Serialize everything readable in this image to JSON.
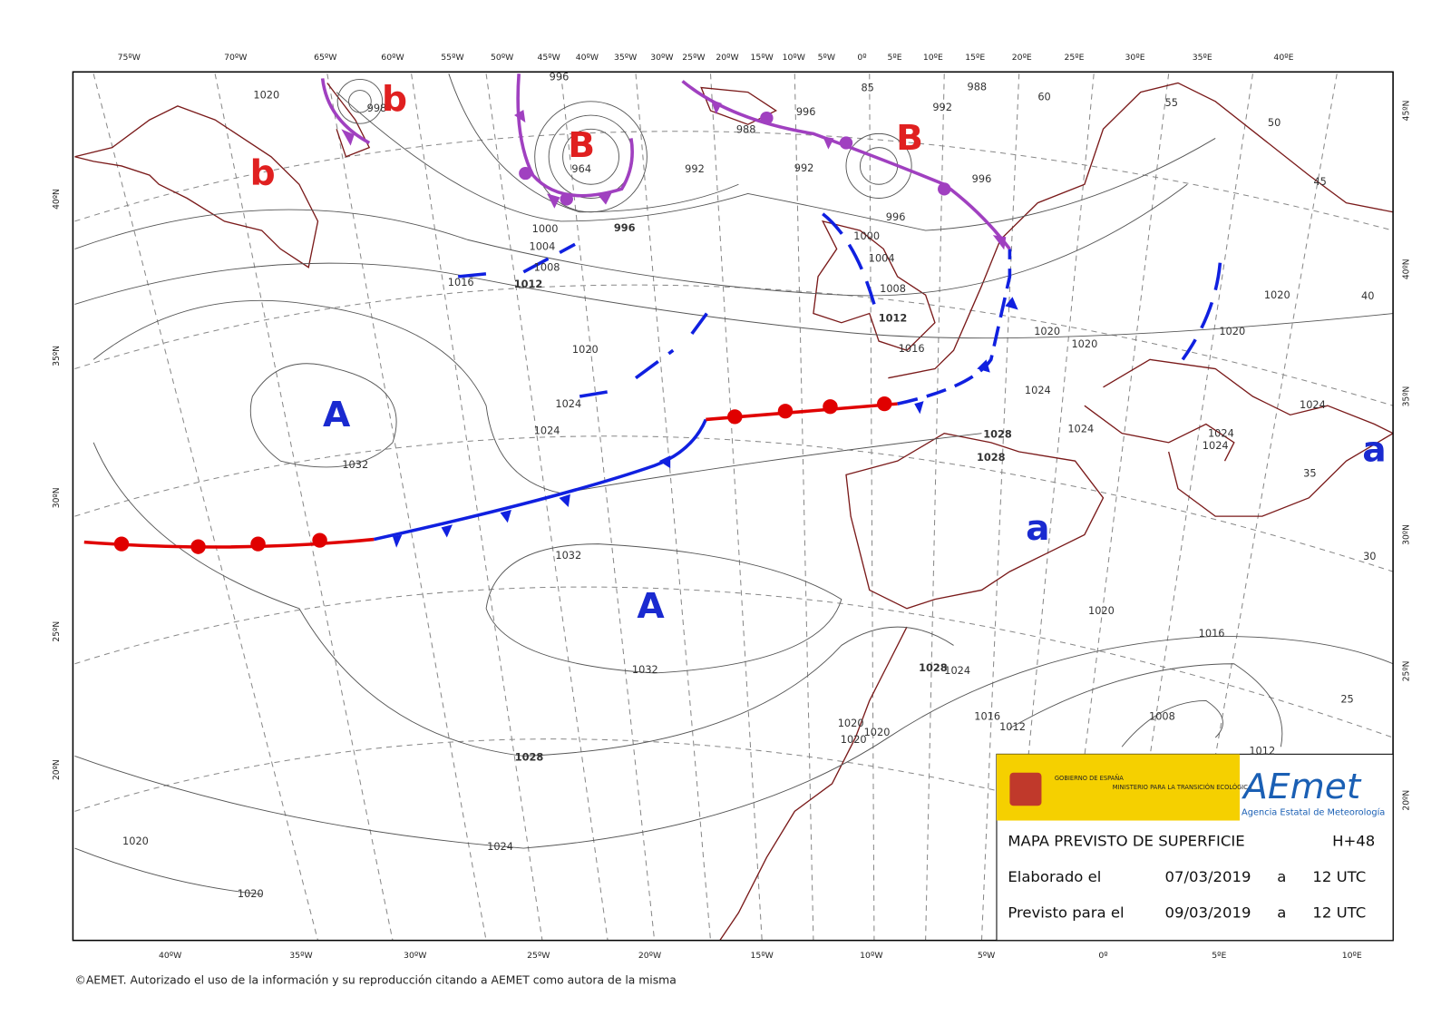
{
  "map": {
    "top_lon_labels": [
      "75ºW",
      "70ºW",
      "65ºW",
      "60ºW",
      "55ºW",
      "50ºW",
      "45ºW",
      "40ºW",
      "35ºW",
      "30ºW",
      "25ºW",
      "20ºW",
      "15ºW",
      "10ºW",
      "5ºW",
      "0º",
      "5ºE",
      "10ºE",
      "15ºE",
      "20ºE",
      "25ºE",
      "30ºE",
      "35ºE",
      "40ºE"
    ],
    "bottom_lon_labels": [
      "40ºW",
      "35ºW",
      "30ºW",
      "25ºW",
      "20ºW",
      "15ºW",
      "10ºW",
      "5ºW",
      "0º",
      "5ºE",
      "10ºE"
    ],
    "left_lat_labels": [
      "40ºN",
      "35ºN",
      "30ºN",
      "25ºN",
      "20ºN"
    ],
    "right_lat_labels": [
      "45ºN",
      "40ºN",
      "35ºN",
      "30ºN",
      "25ºN",
      "20ºN"
    ],
    "pressure_centers": [
      "A",
      "A",
      "B",
      "B",
      "b",
      "b",
      "a",
      "a"
    ],
    "isobar_labels": [
      1020,
      996,
      998,
      964,
      992,
      996,
      1000,
      1004,
      1008,
      1016,
      1012,
      992,
      996,
      988,
      996,
      1000,
      1004,
      1008,
      1012,
      1016,
      1020,
      1024,
      1024,
      1032,
      1020,
      1020,
      1020,
      1020,
      1024,
      1024,
      1028,
      1028,
      1024,
      1024,
      1024,
      1032,
      1032,
      1020,
      1016,
      1028,
      1024,
      1016,
      1012,
      1008,
      1020,
      1020,
      1020,
      1028,
      1020,
      1024,
      1020,
      1012,
      988,
      992,
      996
    ],
    "thickness_labels": [
      85,
      60,
      55,
      50,
      45,
      40,
      35,
      30,
      25
    ],
    "info_box": {
      "government": "GOBIERNO DE ESPAÑA",
      "ministry": "MINISTERIO PARA LA TRANSICIÓN ECOLÓGICA",
      "logo": "AEmet",
      "agency": "Agencia Estatal de Meteorología",
      "title": "MAPA PREVISTO DE SUPERFICIE",
      "lead_time": "H+48",
      "rows": [
        [
          "Elaborado el",
          "07/03/2019",
          "a",
          "12 UTC"
        ],
        [
          "Previsto para el",
          "09/03/2019",
          "a",
          "12 UTC"
        ]
      ]
    },
    "footer": "©AEMET. Autorizado el uso de la información y su reproducción citando a AEMET como autora de la misma"
  }
}
